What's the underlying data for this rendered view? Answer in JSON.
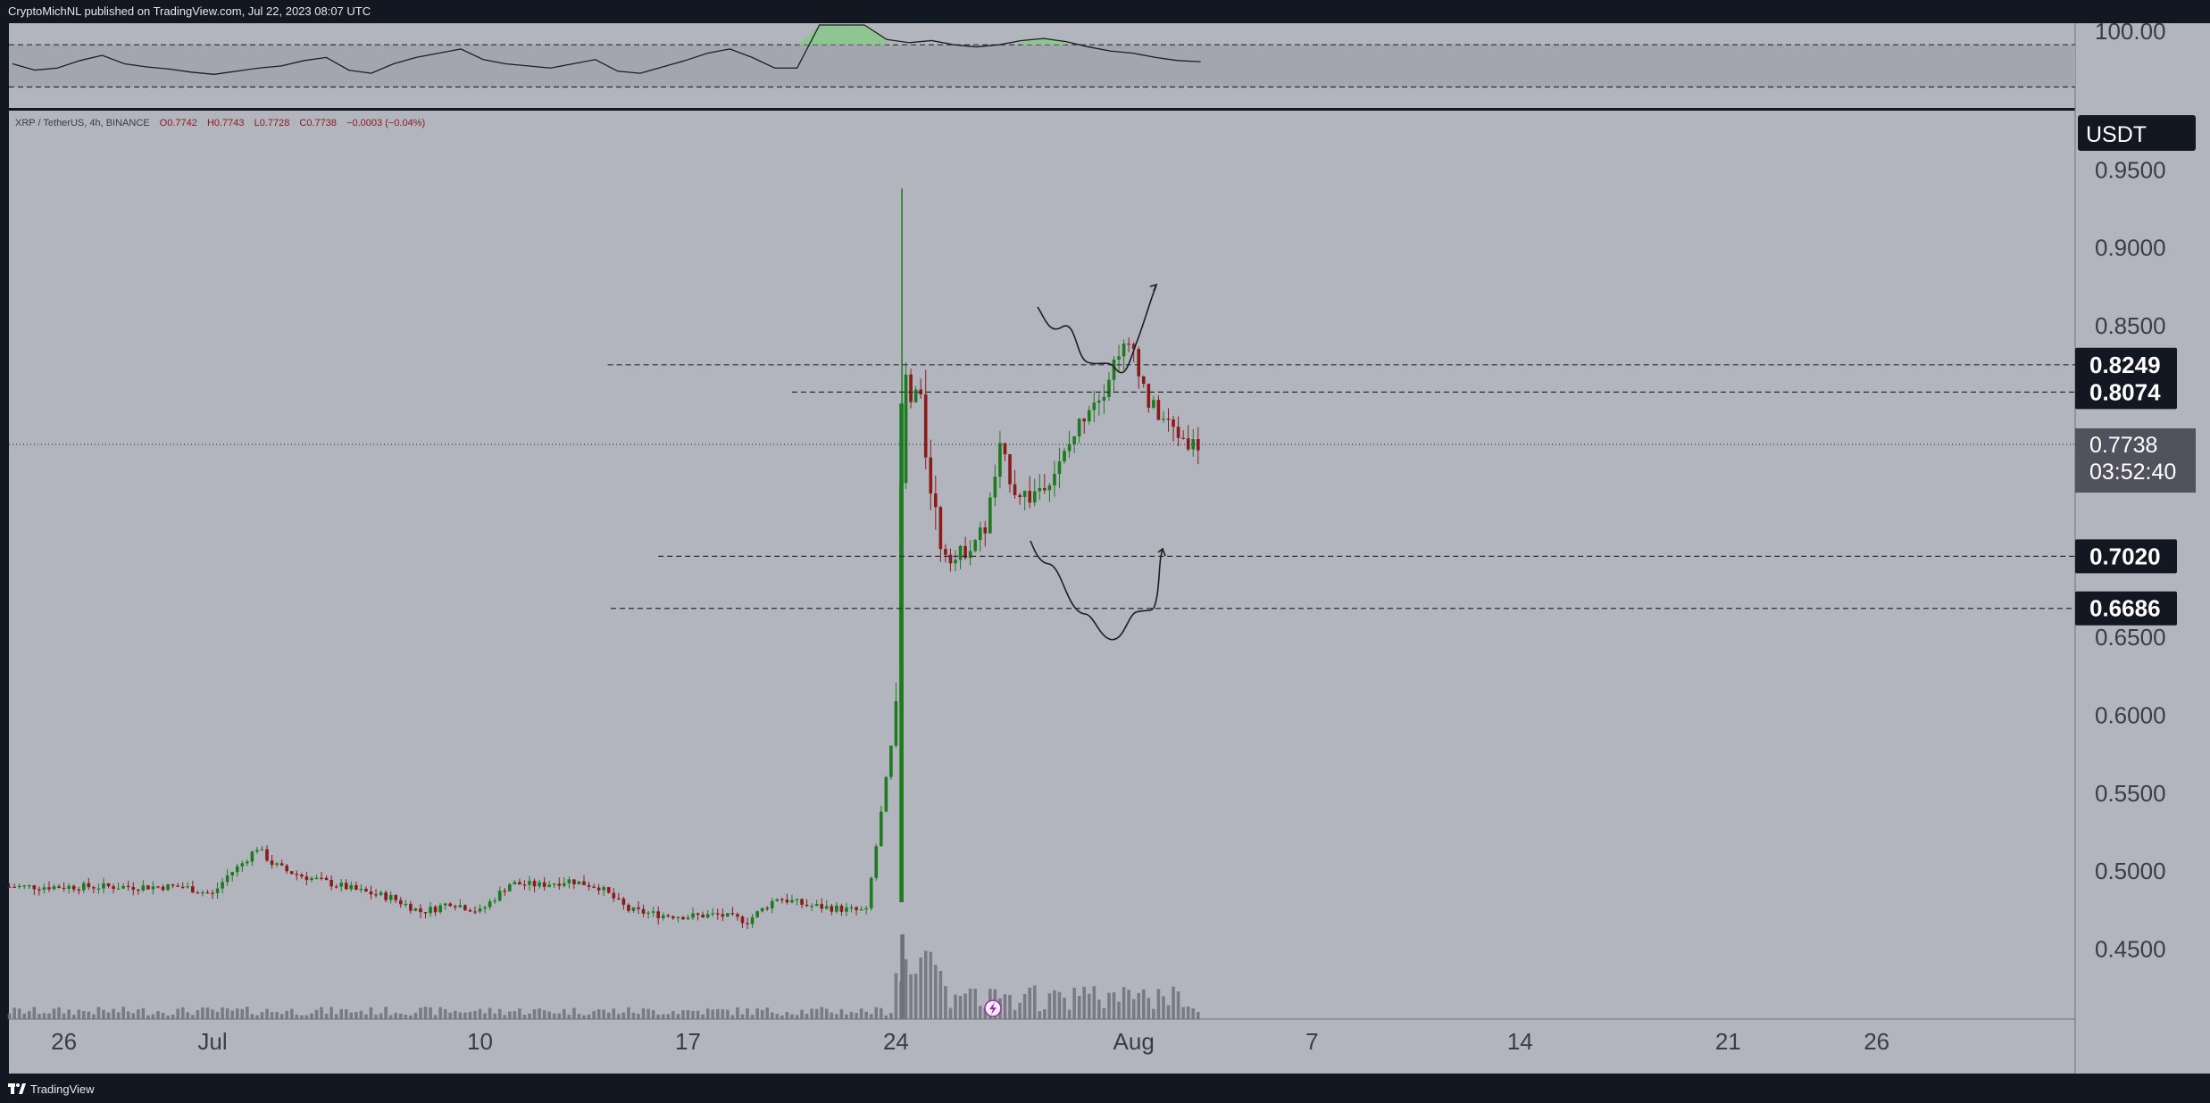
{
  "header": {
    "published": "CryptoMichNL published on TradingView.com, Jul 22, 2023 08:07 UTC"
  },
  "footer": {
    "brand": "TradingView"
  },
  "legend": {
    "symbol": "XRP / TetherUS, 4h, BINANCE",
    "open": "O0.7742",
    "high": "H0.7743",
    "low": "L0.7728",
    "close": "C0.7738",
    "change": "−0.0003 (−0.04%)"
  },
  "colors": {
    "background": "#b2b5be",
    "frame": "#131722",
    "up_candle": "#1e7a1e",
    "down_candle": "#8b1a1a",
    "volume": "#6e717a",
    "price_badge": "#131722",
    "current_badge": "#50535e",
    "legend_red": "#8b1a1a",
    "rsi_fill": "#7fcc7f"
  },
  "chart_data": [
    {
      "type": "candlestick",
      "title": "XRP / TetherUS, 4h, BINANCE",
      "currency": "USDT",
      "x_ticks": [
        "26",
        "Jul",
        "10",
        "17",
        "24",
        "Aug",
        "7",
        "14",
        "21",
        "26"
      ],
      "y_ticks": [
        "0.4500",
        "0.5000",
        "0.5500",
        "0.6000",
        "0.6500",
        "0.8500",
        "0.9000",
        "0.9500"
      ],
      "ylim": [
        0.405,
        0.988
      ],
      "current_price": "0.7738",
      "countdown": "03:52:40",
      "ohlc": {
        "open": 0.7742,
        "high": 0.7743,
        "low": 0.7728,
        "close": 0.7738
      },
      "levels": [
        {
          "label": "0.8249",
          "value": 0.8249,
          "from_day": 13.3
        },
        {
          "label": "0.8074",
          "value": 0.8074,
          "from_day": 19.5
        },
        {
          "label": "0.7020",
          "value": 0.702,
          "from_day": 15.0
        },
        {
          "label": "0.6686",
          "value": 0.6686,
          "from_day": 13.4
        }
      ],
      "price_path": [
        [
          -1,
          0.49
        ],
        [
          0,
          0.485
        ],
        [
          0.5,
          0.497
        ],
        [
          1,
          0.505
        ],
        [
          1.5,
          0.515
        ],
        [
          2,
          0.505
        ],
        [
          2.5,
          0.5
        ],
        [
          3,
          0.497
        ],
        [
          4,
          0.492
        ],
        [
          5,
          0.487
        ],
        [
          6,
          0.483
        ],
        [
          7,
          0.474
        ],
        [
          7.5,
          0.476
        ],
        [
          8,
          0.48
        ],
        [
          9,
          0.474
        ],
        [
          10,
          0.492
        ],
        [
          11,
          0.491
        ],
        [
          12,
          0.494
        ],
        [
          13,
          0.49
        ],
        [
          14,
          0.475
        ],
        [
          15,
          0.472
        ],
        [
          16,
          0.471
        ],
        [
          17,
          0.472
        ],
        [
          18,
          0.468
        ],
        [
          19,
          0.483
        ],
        [
          20,
          0.478
        ],
        [
          21,
          0.476
        ],
        [
          22,
          0.474
        ],
        [
          23,
          0.6
        ],
        [
          23.25,
          0.82
        ],
        [
          23.5,
          0.8
        ],
        [
          23.75,
          0.81
        ],
        [
          24,
          0.77
        ],
        [
          24.5,
          0.71
        ],
        [
          25,
          0.7
        ],
        [
          25.5,
          0.71
        ],
        [
          26,
          0.72
        ],
        [
          26.5,
          0.77
        ],
        [
          27,
          0.745
        ],
        [
          27.5,
          0.74
        ],
        [
          28,
          0.75
        ],
        [
          28.5,
          0.76
        ],
        [
          29,
          0.78
        ],
        [
          29.5,
          0.8
        ],
        [
          30,
          0.81
        ],
        [
          30.5,
          0.835
        ],
        [
          31,
          0.835
        ],
        [
          31.5,
          0.8
        ],
        [
          32,
          0.79
        ],
        [
          32.5,
          0.78
        ],
        [
          33,
          0.774
        ],
        [
          33.25,
          0.7738
        ]
      ],
      "spike_high": 0.938,
      "spike_day": 23.2
    },
    {
      "type": "line",
      "title": "",
      "y_ticks": [
        "100.00"
      ],
      "ylim": [
        0,
        100
      ],
      "upper_band": 70,
      "lower_band": 30,
      "values": [
        52,
        46,
        48,
        55,
        60,
        52,
        49,
        47,
        44,
        42,
        45,
        48,
        50,
        55,
        58,
        46,
        43,
        52,
        58,
        62,
        66,
        56,
        52,
        50,
        48,
        52,
        56,
        45,
        43,
        49,
        55,
        62,
        66,
        58,
        48,
        48,
        95,
        98,
        92,
        75,
        72,
        74,
        70,
        68,
        70,
        74,
        76,
        73,
        68,
        64,
        62,
        58,
        55,
        54
      ]
    }
  ]
}
